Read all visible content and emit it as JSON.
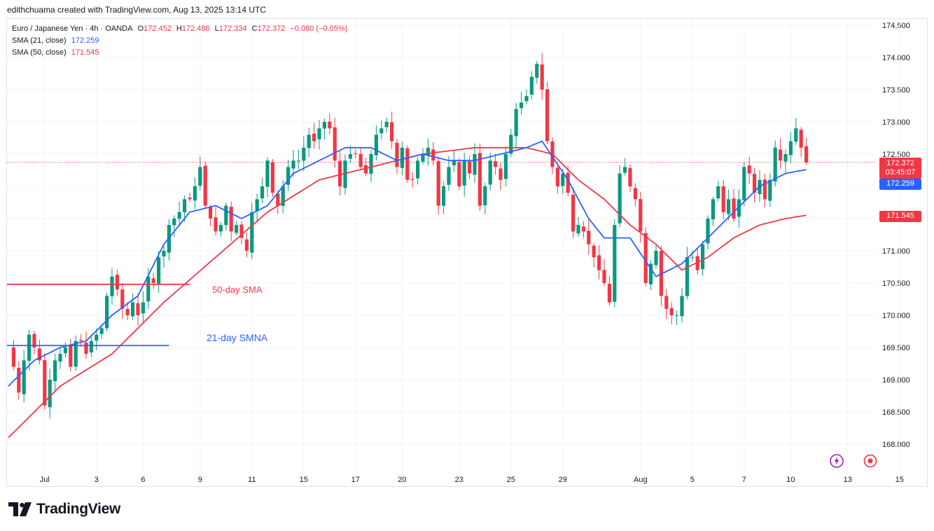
{
  "header": {
    "text": "edithchuama created with TradingView.com, Aug 13, 2025 13:14 UTC"
  },
  "legend": {
    "symbol": "Euro / Japanese Yen · 4h · OANDA",
    "o_label": "O",
    "o_value": "172.452",
    "h_label": "H",
    "h_value": "172.486",
    "l_label": "L",
    "l_value": "172.334",
    "c_label": "C",
    "c_value": "172.372",
    "change": "−0.080 (−0.05%)",
    "sma21_label": "SMA (21, close)",
    "sma21_value": "172.259",
    "sma50_label": "SMA (50, close)",
    "sma50_value": "171.545"
  },
  "price_tags": {
    "last_price": "172.372",
    "countdown": "03:45:07",
    "sma21": "172.259",
    "sma50": "171.545"
  },
  "annotations": {
    "sma50_text": "50-day SMA",
    "sma21_text": "21-day SMNA"
  },
  "footer": {
    "brand": "TradingView"
  },
  "colors": {
    "up": "#089981",
    "down": "#f23645",
    "sma21": "#2962ff",
    "sma50": "#f23645",
    "grid": "#f0f3fa"
  },
  "chart_data": {
    "type": "candlestick",
    "title": "Euro / Japanese Yen · 4h · OANDA",
    "ylim": [
      167.55,
      174.75
    ],
    "y_ticks": [
      "174.500",
      "174.000",
      "173.500",
      "173.000",
      "172.500",
      "172.000",
      "171.500",
      "171.000",
      "170.500",
      "170.000",
      "169.500",
      "169.000",
      "168.500",
      "168.000"
    ],
    "x_ticks": [
      {
        "label": "Jul",
        "i": 7
      },
      {
        "label": "3",
        "i": 17
      },
      {
        "label": "6",
        "i": 26
      },
      {
        "label": "9",
        "i": 37
      },
      {
        "label": "11",
        "i": 47
      },
      {
        "label": "15",
        "i": 57
      },
      {
        "label": "17",
        "i": 67
      },
      {
        "label": "20",
        "i": 76
      },
      {
        "label": "23",
        "i": 87
      },
      {
        "label": "25",
        "i": 97
      },
      {
        "label": "29",
        "i": 107
      },
      {
        "label": "Aug",
        "i": 122
      },
      {
        "label": "5",
        "i": 132
      },
      {
        "label": "7",
        "i": 142
      },
      {
        "label": "10",
        "i": 151
      },
      {
        "label": "13",
        "i": 162
      },
      {
        "label": "15",
        "i": 172
      }
    ],
    "anchors": [
      [
        0,
        169.5
      ],
      [
        1,
        169.2
      ],
      [
        2,
        168.8
      ],
      [
        3,
        169.3
      ],
      [
        4,
        169.7
      ],
      [
        5,
        169.5
      ],
      [
        6,
        169.3
      ],
      [
        7,
        168.6
      ],
      [
        8,
        169.0
      ],
      [
        9,
        169.3
      ],
      [
        10,
        169.4
      ],
      [
        11,
        169.5
      ],
      [
        12,
        169.2
      ],
      [
        13,
        169.6
      ],
      [
        14,
        169.6
      ],
      [
        15,
        169.4
      ],
      [
        16,
        169.6
      ],
      [
        17,
        169.7
      ],
      [
        18,
        169.8
      ],
      [
        19,
        170.3
      ],
      [
        20,
        170.6
      ],
      [
        21,
        170.4
      ],
      [
        22,
        170.1
      ],
      [
        23,
        170.0
      ],
      [
        24,
        170.2
      ],
      [
        25,
        170.0
      ],
      [
        26,
        170.2
      ],
      [
        27,
        170.6
      ],
      [
        28,
        170.5
      ],
      [
        29,
        170.9
      ],
      [
        30,
        171.0
      ],
      [
        31,
        171.4
      ],
      [
        32,
        171.5
      ],
      [
        33,
        171.6
      ],
      [
        34,
        171.8
      ],
      [
        35,
        171.8
      ],
      [
        36,
        172.0
      ],
      [
        37,
        172.3
      ],
      [
        38,
        171.7
      ],
      [
        39,
        171.5
      ],
      [
        40,
        171.3
      ],
      [
        41,
        171.4
      ],
      [
        42,
        171.7
      ],
      [
        43,
        171.3
      ],
      [
        44,
        171.4
      ],
      [
        45,
        171.2
      ],
      [
        46,
        171.0
      ],
      [
        47,
        171.6
      ],
      [
        48,
        171.8
      ],
      [
        49,
        172.0
      ],
      [
        50,
        172.4
      ],
      [
        51,
        171.9
      ],
      [
        52,
        171.7
      ],
      [
        53,
        172.0
      ],
      [
        54,
        172.3
      ],
      [
        55,
        172.4
      ],
      [
        56,
        172.4
      ],
      [
        57,
        172.6
      ],
      [
        58,
        172.8
      ],
      [
        59,
        172.7
      ],
      [
        60,
        172.9
      ],
      [
        61,
        173.0
      ],
      [
        62,
        172.9
      ],
      [
        63,
        172.4
      ],
      [
        64,
        172.0
      ],
      [
        65,
        172.4
      ],
      [
        66,
        172.5
      ],
      [
        67,
        172.5
      ],
      [
        68,
        172.3
      ],
      [
        69,
        172.2
      ],
      [
        70,
        172.5
      ],
      [
        71,
        172.8
      ],
      [
        72,
        172.9
      ],
      [
        73,
        173.0
      ],
      [
        74,
        172.7
      ],
      [
        75,
        172.3
      ],
      [
        76,
        172.6
      ],
      [
        77,
        172.1
      ],
      [
        78,
        172.1
      ],
      [
        79,
        172.4
      ],
      [
        80,
        172.5
      ],
      [
        81,
        172.6
      ],
      [
        82,
        172.4
      ],
      [
        83,
        171.7
      ],
      [
        84,
        172.0
      ],
      [
        85,
        172.3
      ],
      [
        86,
        172.4
      ],
      [
        87,
        172.0
      ],
      [
        88,
        172.4
      ],
      [
        89,
        172.2
      ],
      [
        90,
        172.5
      ],
      [
        91,
        171.7
      ],
      [
        92,
        172.0
      ],
      [
        93,
        172.4
      ],
      [
        94,
        172.3
      ],
      [
        95,
        172.1
      ],
      [
        96,
        172.5
      ],
      [
        97,
        172.8
      ],
      [
        98,
        173.2
      ],
      [
        99,
        173.3
      ],
      [
        100,
        173.4
      ],
      [
        101,
        173.7
      ],
      [
        102,
        173.9
      ],
      [
        103,
        173.5
      ],
      [
        104,
        172.7
      ],
      [
        105,
        172.3
      ],
      [
        106,
        172.0
      ],
      [
        107,
        172.2
      ],
      [
        108,
        171.9
      ],
      [
        109,
        171.3
      ],
      [
        110,
        171.4
      ],
      [
        111,
        171.3
      ],
      [
        112,
        171.1
      ],
      [
        113,
        170.9
      ],
      [
        114,
        170.7
      ],
      [
        115,
        170.5
      ],
      [
        116,
        170.2
      ],
      [
        117,
        171.4
      ],
      [
        118,
        172.2
      ],
      [
        119,
        172.3
      ],
      [
        120,
        172.0
      ],
      [
        121,
        171.8
      ],
      [
        122,
        171.3
      ],
      [
        123,
        170.5
      ],
      [
        124,
        170.8
      ],
      [
        125,
        171.0
      ],
      [
        126,
        170.3
      ],
      [
        127,
        170.1
      ],
      [
        128,
        170.0
      ],
      [
        129,
        170.0
      ],
      [
        130,
        170.3
      ],
      [
        131,
        170.9
      ],
      [
        132,
        170.9
      ],
      [
        133,
        170.7
      ],
      [
        134,
        171.1
      ],
      [
        135,
        171.5
      ],
      [
        136,
        171.8
      ],
      [
        137,
        172.0
      ],
      [
        138,
        171.6
      ],
      [
        139,
        171.8
      ],
      [
        140,
        171.5
      ],
      [
        141,
        171.8
      ],
      [
        142,
        172.3
      ],
      [
        143,
        172.2
      ],
      [
        144,
        171.9
      ],
      [
        145,
        172.1
      ],
      [
        146,
        171.8
      ],
      [
        147,
        172.1
      ],
      [
        148,
        172.6
      ],
      [
        149,
        172.4
      ],
      [
        150,
        172.5
      ],
      [
        151,
        172.7
      ],
      [
        152,
        172.9
      ],
      [
        153,
        172.6
      ],
      [
        154,
        172.37
      ]
    ],
    "sma21_anchors": [
      [
        0,
        168.9
      ],
      [
        5,
        169.3
      ],
      [
        10,
        169.5
      ],
      [
        15,
        169.6
      ],
      [
        20,
        170.0
      ],
      [
        25,
        170.3
      ],
      [
        30,
        171.1
      ],
      [
        35,
        171.6
      ],
      [
        40,
        171.7
      ],
      [
        45,
        171.5
      ],
      [
        50,
        171.7
      ],
      [
        55,
        172.2
      ],
      [
        60,
        172.4
      ],
      [
        65,
        172.6
      ],
      [
        70,
        172.6
      ],
      [
        75,
        172.4
      ],
      [
        80,
        172.5
      ],
      [
        85,
        172.4
      ],
      [
        90,
        172.4
      ],
      [
        95,
        172.5
      ],
      [
        100,
        172.6
      ],
      [
        103,
        172.7
      ],
      [
        108,
        172.1
      ],
      [
        112,
        171.5
      ],
      [
        115,
        171.2
      ],
      [
        120,
        171.2
      ],
      [
        125,
        170.6
      ],
      [
        130,
        170.8
      ],
      [
        135,
        171.2
      ],
      [
        140,
        171.6
      ],
      [
        145,
        172.0
      ],
      [
        150,
        172.2
      ],
      [
        154,
        172.26
      ]
    ],
    "sma50_anchors": [
      [
        0,
        168.1
      ],
      [
        10,
        168.9
      ],
      [
        20,
        169.4
      ],
      [
        30,
        170.2
      ],
      [
        40,
        170.9
      ],
      [
        50,
        171.6
      ],
      [
        60,
        172.1
      ],
      [
        70,
        172.3
      ],
      [
        80,
        172.5
      ],
      [
        90,
        172.6
      ],
      [
        100,
        172.6
      ],
      [
        105,
        172.5
      ],
      [
        110,
        172.1
      ],
      [
        115,
        171.8
      ],
      [
        120,
        171.4
      ],
      [
        125,
        171.1
      ],
      [
        130,
        170.7
      ],
      [
        135,
        170.9
      ],
      [
        140,
        171.2
      ],
      [
        145,
        171.4
      ],
      [
        150,
        171.5
      ],
      [
        154,
        171.55
      ]
    ],
    "hline_sma50_left": {
      "start_i": 0,
      "end_i": 35,
      "value": 170.48
    },
    "hline_sma21_left": {
      "start_i": 0,
      "end_i": 31,
      "value": 169.53
    },
    "last_price_line": 172.372
  }
}
